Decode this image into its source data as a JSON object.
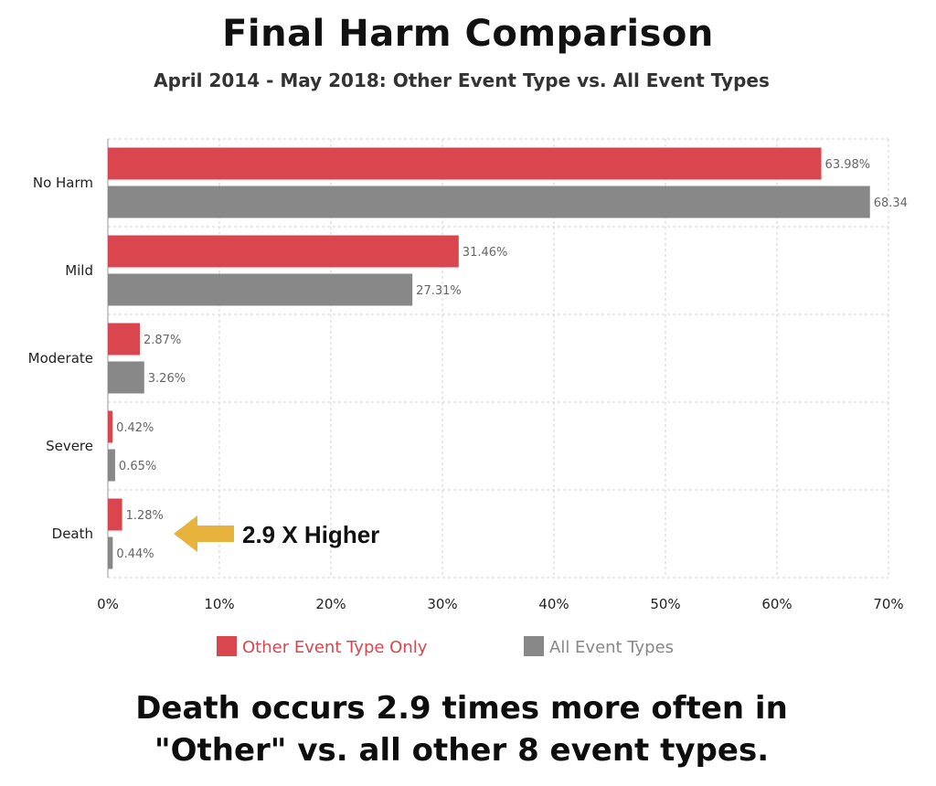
{
  "header": {
    "title": "Final Harm Comparison",
    "subtitle": "April 2014 - May 2018: Other Event Type vs. All Event Types"
  },
  "footer": {
    "line1": "Death occurs 2.9 times more often in",
    "line2": "\"Other\" vs. all other 8 event types."
  },
  "annotation": {
    "text": "2.9 X Higher",
    "target_category": "Death",
    "arrow_color": "#e8b33c"
  },
  "colors": {
    "series1": "#d9464e",
    "series2": "#888888",
    "grid": "#d0d0d0",
    "legend1_text": "#d9464e",
    "legend2_text": "#888888"
  },
  "chart_data": {
    "type": "bar",
    "orientation": "horizontal",
    "categories": [
      "No Harm",
      "Mild",
      "Moderate",
      "Severe",
      "Death"
    ],
    "series": [
      {
        "name": "Other Event Type Only",
        "values": [
          63.98,
          31.46,
          2.87,
          0.42,
          1.28
        ],
        "labels": [
          "63.98%",
          "31.46%",
          "2.87%",
          "0.42%",
          "1.28%"
        ]
      },
      {
        "name": "All Event Types",
        "values": [
          68.34,
          27.31,
          3.26,
          0.65,
          0.44
        ],
        "labels": [
          "68.34",
          "27.31%",
          "3.26%",
          "0.65%",
          "0.44%"
        ]
      }
    ],
    "xlim": [
      0,
      70
    ],
    "xticks": [
      0,
      10,
      20,
      30,
      40,
      50,
      60,
      70
    ],
    "xtick_labels": [
      "0%",
      "10%",
      "20%",
      "30%",
      "40%",
      "50%",
      "60%",
      "70%"
    ],
    "grid": true,
    "legend_position": "bottom"
  }
}
